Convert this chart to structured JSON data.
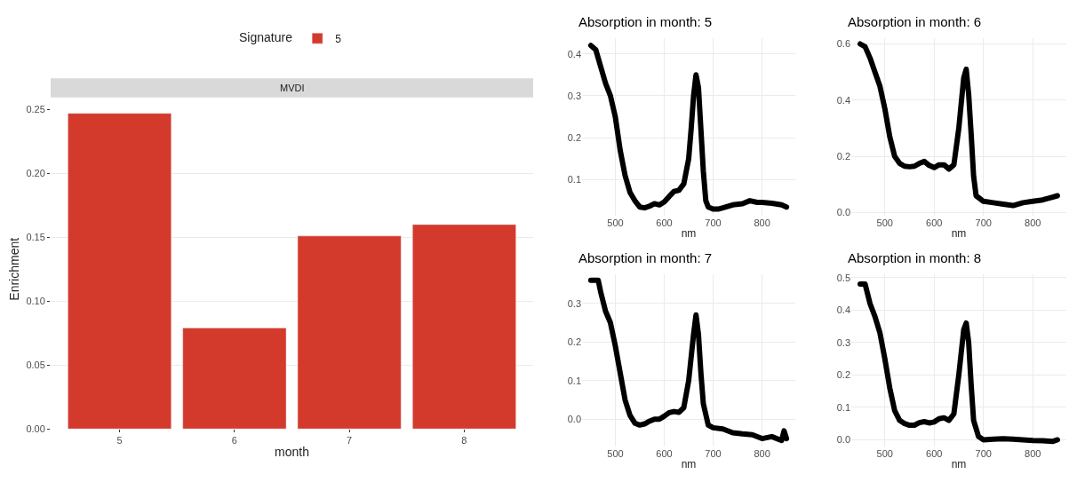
{
  "chart_data": [
    {
      "type": "bar",
      "title": "MVDI",
      "xlabel": "month",
      "ylabel": "Enrichment",
      "legend_title": "Signature",
      "legend": "top",
      "grid": true,
      "categories": [
        "5",
        "6",
        "7",
        "8"
      ],
      "series": [
        {
          "name": "5",
          "color": "#d33a2c",
          "values": [
            0.247,
            0.079,
            0.151,
            0.16
          ]
        }
      ],
      "ylim": [
        0,
        0.25
      ],
      "yticks": [
        {
          "value": 0,
          "label": "0.00"
        },
        {
          "value": 0.05,
          "label": "0.05"
        },
        {
          "value": 0.1,
          "label": "0.10"
        },
        {
          "value": 0.15,
          "label": "0.15"
        },
        {
          "value": 0.2,
          "label": "0.20"
        },
        {
          "value": 0.25,
          "label": "0.25"
        }
      ]
    },
    {
      "type": "line",
      "title": "Absorption in month: 5",
      "xlabel": "nm",
      "grid": true,
      "line_style": "solid",
      "series": [
        {
          "color": "#000000",
          "x": [
            450,
            460,
            470,
            480,
            490,
            500,
            510,
            520,
            530,
            540,
            550,
            560,
            570,
            580,
            590,
            600,
            610,
            620,
            630,
            640,
            650,
            655,
            660,
            665,
            670,
            675,
            680,
            685,
            690,
            700,
            710,
            720,
            740,
            760,
            775,
            790,
            800,
            820,
            840,
            850
          ],
          "values": [
            0.42,
            0.41,
            0.37,
            0.33,
            0.3,
            0.25,
            0.17,
            0.11,
            0.07,
            0.05,
            0.035,
            0.033,
            0.037,
            0.043,
            0.04,
            0.047,
            0.06,
            0.072,
            0.075,
            0.09,
            0.15,
            0.22,
            0.3,
            0.35,
            0.32,
            0.22,
            0.12,
            0.05,
            0.035,
            0.03,
            0.03,
            0.033,
            0.04,
            0.043,
            0.05,
            0.046,
            0.046,
            0.044,
            0.04,
            0.035
          ]
        }
      ],
      "xlim": [
        432,
        868
      ],
      "ylim": [
        0.015,
        0.437
      ],
      "xticks": [
        500,
        600,
        700,
        800
      ],
      "yticks": [
        0.1,
        0.2,
        0.3,
        0.4
      ]
    },
    {
      "type": "line",
      "title": "Absorption in month: 6",
      "xlabel": "nm",
      "grid": true,
      "line_style": "solid",
      "series": [
        {
          "color": "#000000",
          "x": [
            450,
            460,
            470,
            480,
            490,
            500,
            510,
            520,
            530,
            540,
            550,
            560,
            570,
            580,
            590,
            600,
            610,
            620,
            630,
            640,
            650,
            660,
            665,
            670,
            675,
            680,
            685,
            700,
            720,
            740,
            760,
            780,
            800,
            820,
            840,
            850
          ],
          "values": [
            0.6,
            0.59,
            0.55,
            0.5,
            0.45,
            0.37,
            0.27,
            0.2,
            0.175,
            0.165,
            0.163,
            0.165,
            0.175,
            0.182,
            0.168,
            0.16,
            0.17,
            0.17,
            0.155,
            0.17,
            0.3,
            0.48,
            0.51,
            0.42,
            0.28,
            0.13,
            0.06,
            0.04,
            0.035,
            0.03,
            0.025,
            0.035,
            0.04,
            0.045,
            0.055,
            0.06
          ]
        }
      ],
      "xlim": [
        432,
        868
      ],
      "ylim": [
        -0.01,
        0.62
      ],
      "xticks": [
        500,
        600,
        700,
        800
      ],
      "yticks": [
        {
          "value": 0,
          "label": "0.0"
        },
        0.2,
        0.4,
        0.6
      ]
    },
    {
      "type": "line",
      "title": "Absorption in month: 7",
      "xlabel": "nm",
      "grid": true,
      "line_style": "solid",
      "series": [
        {
          "color": "#000000",
          "x": [
            450,
            465,
            470,
            480,
            490,
            500,
            510,
            520,
            530,
            540,
            550,
            560,
            570,
            580,
            590,
            600,
            610,
            620,
            630,
            640,
            650,
            660,
            665,
            670,
            675,
            680,
            690,
            700,
            720,
            740,
            760,
            780,
            800,
            820,
            840,
            845,
            850
          ],
          "values": [
            0.36,
            0.36,
            0.33,
            0.28,
            0.25,
            0.19,
            0.12,
            0.05,
            0.01,
            -0.01,
            -0.015,
            -0.012,
            -0.005,
            0.0,
            0.0,
            0.008,
            0.017,
            0.02,
            0.018,
            0.03,
            0.1,
            0.22,
            0.27,
            0.22,
            0.12,
            0.04,
            -0.015,
            -0.022,
            -0.025,
            -0.035,
            -0.038,
            -0.04,
            -0.05,
            -0.045,
            -0.055,
            -0.03,
            -0.05
          ]
        }
      ],
      "xlim": [
        432,
        868
      ],
      "ylim": [
        -0.07,
        0.375
      ],
      "xticks": [
        500,
        600,
        700,
        800
      ],
      "yticks": [
        {
          "value": 0,
          "label": "0.0"
        },
        0.1,
        0.2,
        0.3
      ]
    },
    {
      "type": "line",
      "title": "Absorption in month: 8",
      "xlabel": "nm",
      "grid": true,
      "line_style": "solid",
      "series": [
        {
          "color": "#000000",
          "x": [
            450,
            460,
            470,
            480,
            490,
            500,
            510,
            520,
            530,
            540,
            550,
            560,
            570,
            580,
            590,
            600,
            610,
            620,
            630,
            640,
            650,
            660,
            665,
            670,
            675,
            680,
            690,
            700,
            720,
            740,
            760,
            780,
            800,
            820,
            840,
            850
          ],
          "values": [
            0.48,
            0.48,
            0.42,
            0.38,
            0.33,
            0.25,
            0.16,
            0.09,
            0.06,
            0.05,
            0.045,
            0.045,
            0.053,
            0.056,
            0.052,
            0.055,
            0.065,
            0.068,
            0.06,
            0.08,
            0.2,
            0.34,
            0.36,
            0.3,
            0.17,
            0.06,
            0.01,
            0.0,
            0.002,
            0.003,
            0.002,
            0.0,
            -0.002,
            -0.003,
            -0.005,
            0.0
          ]
        }
      ],
      "xlim": [
        432,
        868
      ],
      "ylim": [
        -0.02,
        0.51
      ],
      "xticks": [
        500,
        600,
        700,
        800
      ],
      "yticks": [
        {
          "value": 0,
          "label": "0.0"
        },
        0.1,
        0.2,
        0.3,
        0.4,
        0.5
      ]
    }
  ]
}
